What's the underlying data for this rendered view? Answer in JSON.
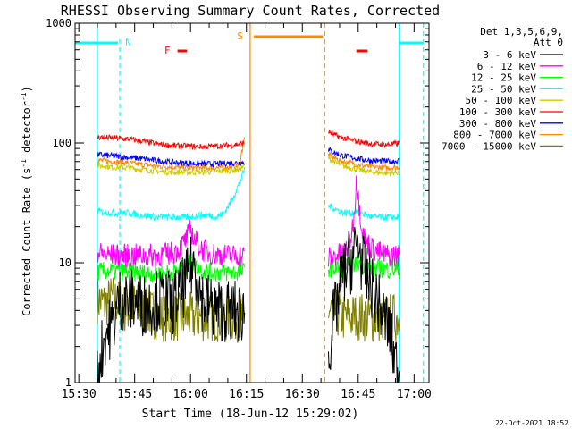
{
  "chart_data": {
    "type": "line",
    "title": "RHESSI Observing Summary Count Rates, Corrected",
    "xlabel": "Start Time (18-Jun-12 15:29:02)",
    "ylabel_main": "Corrected Count Rate (s",
    "ylabel_sup1": "-1",
    "ylabel_mid": " detector",
    "ylabel_sup2": "-1",
    "ylabel_end": ")",
    "xlim_minutes": [
      0,
      95
    ],
    "ylim": [
      1,
      1000
    ],
    "yscale": "log",
    "x_ticks": [
      {
        "value": 1,
        "label": "15:30"
      },
      {
        "value": 16,
        "label": "15:45"
      },
      {
        "value": 31,
        "label": "16:00"
      },
      {
        "value": 46,
        "label": "16:15"
      },
      {
        "value": 61,
        "label": "16:30"
      },
      {
        "value": 76,
        "label": "16:45"
      },
      {
        "value": 91,
        "label": "17:00"
      }
    ],
    "y_ticks": [
      {
        "value": 1,
        "label": "1"
      },
      {
        "value": 10,
        "label": "10"
      },
      {
        "value": 100,
        "label": "100"
      },
      {
        "value": 1000,
        "label": "1000"
      }
    ],
    "legend_title": [
      "Det 1,3,5,6,9,",
      "Att 0"
    ],
    "data_intervals": [
      [
        6,
        45.5
      ],
      [
        68,
        87
      ]
    ],
    "series": [
      {
        "name": "3 - 6 keV",
        "color": "#000000",
        "seg1": [
          [
            6,
            1.2
          ],
          [
            8,
            2.5
          ],
          [
            10,
            3
          ],
          [
            12,
            5
          ],
          [
            14,
            5
          ],
          [
            16,
            4.8
          ],
          [
            18,
            4.5
          ],
          [
            20,
            4.5
          ],
          [
            22,
            4.8
          ],
          [
            24,
            5
          ],
          [
            26,
            4.5
          ],
          [
            28,
            5.5
          ],
          [
            30,
            7
          ],
          [
            31,
            9
          ],
          [
            32,
            10
          ],
          [
            33,
            7
          ],
          [
            34,
            5
          ],
          [
            36,
            4.5
          ],
          [
            38,
            4
          ],
          [
            40,
            4
          ],
          [
            42,
            4
          ],
          [
            44,
            3.8
          ],
          [
            45.5,
            4
          ]
        ],
        "seg2": [
          [
            68,
            1.5
          ],
          [
            69,
            3
          ],
          [
            70,
            4
          ],
          [
            71,
            6
          ],
          [
            72,
            8
          ],
          [
            74,
            10
          ],
          [
            76,
            15
          ],
          [
            77,
            10
          ],
          [
            78,
            8
          ],
          [
            79,
            7
          ],
          [
            80,
            6
          ],
          [
            81,
            5
          ],
          [
            82,
            4
          ],
          [
            84,
            3
          ],
          [
            86,
            1.5
          ],
          [
            87,
            1.2
          ]
        ]
      },
      {
        "name": "6 - 12 keV",
        "color": "#ff00ff",
        "seg1": [
          [
            6,
            12
          ],
          [
            10,
            11.5
          ],
          [
            14,
            11.5
          ],
          [
            18,
            11.5
          ],
          [
            22,
            11.5
          ],
          [
            26,
            12
          ],
          [
            28,
            13
          ],
          [
            30,
            16
          ],
          [
            31,
            19
          ],
          [
            32,
            16
          ],
          [
            34,
            13
          ],
          [
            36,
            12
          ],
          [
            40,
            11.5
          ],
          [
            45.5,
            11.5
          ]
        ],
        "seg2": [
          [
            68,
            11
          ],
          [
            70,
            11.5
          ],
          [
            72,
            12
          ],
          [
            74,
            16
          ],
          [
            75,
            25
          ],
          [
            75.5,
            55
          ],
          [
            76,
            35
          ],
          [
            77,
            20
          ],
          [
            78,
            15
          ],
          [
            80,
            13
          ],
          [
            82,
            12
          ],
          [
            84,
            11.5
          ],
          [
            87,
            11.5
          ]
        ]
      },
      {
        "name": "12 - 25 keV",
        "color": "#00ff00",
        "seg1": [
          [
            6,
            8.5
          ],
          [
            10,
            8.5
          ],
          [
            14,
            8.5
          ],
          [
            18,
            8.2
          ],
          [
            22,
            8.2
          ],
          [
            26,
            8.3
          ],
          [
            30,
            9.2
          ],
          [
            31,
            10
          ],
          [
            32,
            9.5
          ],
          [
            34,
            8.6
          ],
          [
            38,
            8.3
          ],
          [
            42,
            8.3
          ],
          [
            45.5,
            8.5
          ]
        ],
        "seg2": [
          [
            68,
            9
          ],
          [
            72,
            9
          ],
          [
            74,
            9.5
          ],
          [
            76,
            10
          ],
          [
            78,
            9.5
          ],
          [
            80,
            9
          ],
          [
            84,
            8.8
          ],
          [
            87,
            8.8
          ]
        ]
      },
      {
        "name": "25 - 50 keV",
        "color": "#00ffff",
        "seg1": [
          [
            6,
            27
          ],
          [
            10,
            26
          ],
          [
            14,
            26
          ],
          [
            18,
            25
          ],
          [
            22,
            24
          ],
          [
            26,
            24
          ],
          [
            30,
            24
          ],
          [
            34,
            25
          ],
          [
            36,
            25
          ],
          [
            38,
            24
          ],
          [
            40,
            26
          ],
          [
            42,
            33
          ],
          [
            44,
            45
          ],
          [
            45.5,
            60
          ]
        ],
        "seg2": [
          [
            68,
            30
          ],
          [
            70,
            28
          ],
          [
            72,
            26
          ],
          [
            74,
            26
          ],
          [
            76,
            27
          ],
          [
            78,
            25
          ],
          [
            80,
            24
          ],
          [
            84,
            24
          ],
          [
            87,
            24
          ]
        ]
      },
      {
        "name": "50 - 100 keV",
        "color": "#cccc00",
        "seg1": [
          [
            6,
            65
          ],
          [
            10,
            63
          ],
          [
            14,
            62
          ],
          [
            18,
            60
          ],
          [
            22,
            58
          ],
          [
            26,
            57
          ],
          [
            30,
            57
          ],
          [
            34,
            57
          ],
          [
            38,
            58
          ],
          [
            42,
            59
          ],
          [
            44,
            60
          ],
          [
            45.5,
            65
          ]
        ],
        "seg2": [
          [
            68,
            75
          ],
          [
            70,
            68
          ],
          [
            72,
            64
          ],
          [
            74,
            62
          ],
          [
            76,
            60
          ],
          [
            78,
            58
          ],
          [
            80,
            57
          ],
          [
            84,
            56
          ],
          [
            87,
            57
          ]
        ]
      },
      {
        "name": "100 - 300 keV",
        "color": "#ff0000",
        "seg1": [
          [
            6,
            112
          ],
          [
            10,
            110
          ],
          [
            14,
            108
          ],
          [
            18,
            104
          ],
          [
            22,
            98
          ],
          [
            26,
            95
          ],
          [
            30,
            94
          ],
          [
            34,
            93
          ],
          [
            38,
            94
          ],
          [
            42,
            96
          ],
          [
            44,
            98
          ],
          [
            45.5,
            100
          ]
        ],
        "seg2": [
          [
            68,
            125
          ],
          [
            70,
            115
          ],
          [
            72,
            110
          ],
          [
            74,
            106
          ],
          [
            76,
            103
          ],
          [
            78,
            100
          ],
          [
            80,
            98
          ],
          [
            84,
            97
          ],
          [
            87,
            99
          ]
        ]
      },
      {
        "name": "300 - 800 keV",
        "color": "#0000ff",
        "seg1": [
          [
            6,
            80
          ],
          [
            10,
            78
          ],
          [
            14,
            76
          ],
          [
            18,
            74
          ],
          [
            22,
            71
          ],
          [
            26,
            69
          ],
          [
            30,
            68
          ],
          [
            34,
            67
          ],
          [
            38,
            67
          ],
          [
            42,
            68
          ],
          [
            45.5,
            69
          ]
        ],
        "seg2": [
          [
            68,
            88
          ],
          [
            70,
            82
          ],
          [
            72,
            78
          ],
          [
            74,
            76
          ],
          [
            76,
            74
          ],
          [
            78,
            72
          ],
          [
            80,
            71
          ],
          [
            84,
            70
          ],
          [
            87,
            71
          ]
        ]
      },
      {
        "name": "800 - 7000 keV",
        "color": "#ff8800",
        "seg1": [
          [
            6,
            72
          ],
          [
            10,
            70
          ],
          [
            14,
            68
          ],
          [
            18,
            66
          ],
          [
            22,
            64
          ],
          [
            26,
            63
          ],
          [
            30,
            62
          ],
          [
            34,
            62
          ],
          [
            38,
            62
          ],
          [
            42,
            63
          ],
          [
            44,
            64
          ],
          [
            45.5,
            110
          ]
        ],
        "seg2": [
          [
            68,
            80
          ],
          [
            70,
            74
          ],
          [
            72,
            70
          ],
          [
            74,
            68
          ],
          [
            76,
            66
          ],
          [
            78,
            64
          ],
          [
            80,
            63
          ],
          [
            84,
            62
          ],
          [
            87,
            63
          ]
        ]
      },
      {
        "name": "7000 - 15000 keV",
        "color": "#808000",
        "seg1": [
          [
            6,
            5
          ],
          [
            8,
            4.5
          ],
          [
            10,
            5
          ],
          [
            12,
            4.5
          ],
          [
            14,
            4
          ],
          [
            16,
            4.5
          ],
          [
            18,
            4
          ],
          [
            20,
            3.8
          ],
          [
            24,
            3.5
          ],
          [
            28,
            3.5
          ],
          [
            32,
            3.5
          ],
          [
            36,
            3.5
          ],
          [
            40,
            3.5
          ],
          [
            45.5,
            3.5
          ]
        ],
        "seg2": [
          [
            68,
            4
          ],
          [
            70,
            3.8
          ],
          [
            72,
            3.5
          ],
          [
            74,
            3.5
          ],
          [
            76,
            3.6
          ],
          [
            78,
            3.5
          ],
          [
            80,
            3.4
          ],
          [
            84,
            3.5
          ],
          [
            87,
            3.5
          ]
        ]
      }
    ],
    "flags": {
      "N": {
        "label": "N",
        "color": "#00ffff"
      },
      "F": {
        "label": "F",
        "color": "#ff0000"
      },
      "S": {
        "label": "S",
        "color": "#ff8800"
      }
    },
    "grid": false,
    "legend_position": "right"
  },
  "footer": {
    "date": "22-Oct-2021 18:52"
  },
  "palette": {
    "background": "#ffffff",
    "axis": "#000000",
    "night": "#00ffff",
    "saa": "#ff8800",
    "flare": "#ff0000"
  }
}
